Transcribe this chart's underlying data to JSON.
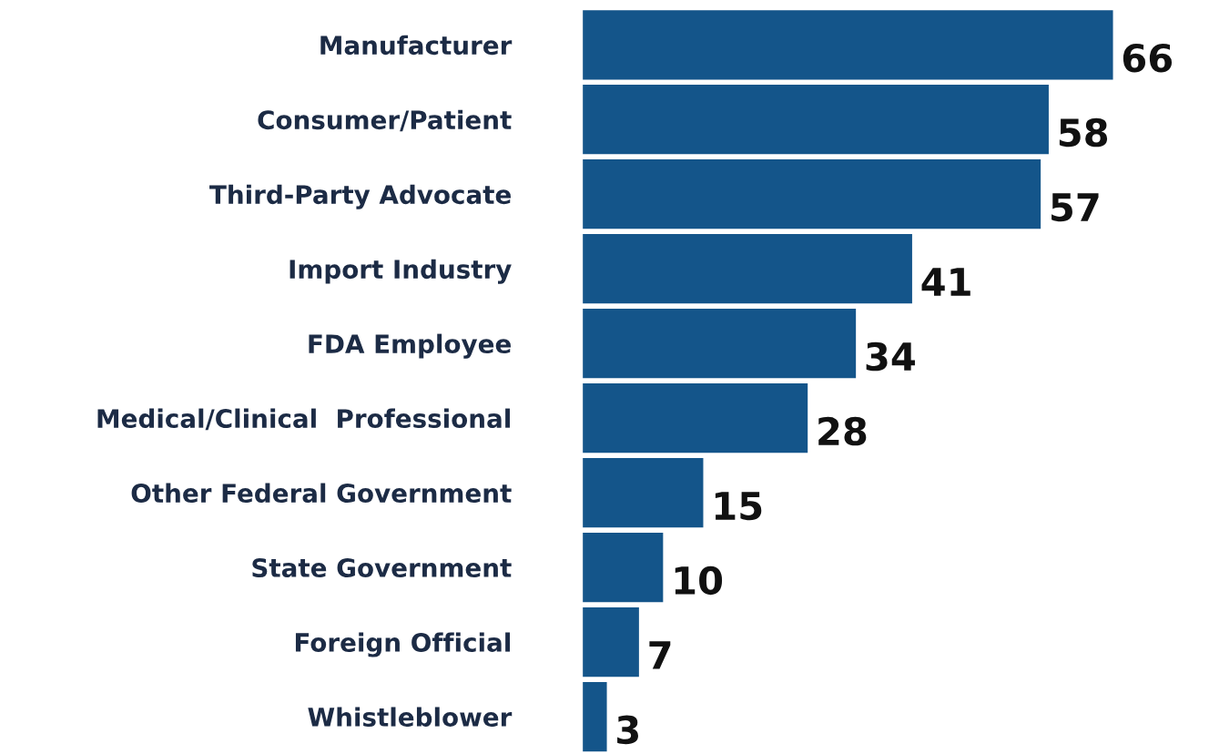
{
  "chart_data": {
    "type": "bar",
    "orientation": "horizontal",
    "categories": [
      "Manufacturer",
      "Consumer/Patient",
      "Third-Party Advocate",
      "Import Industry",
      "FDA Employee",
      "Medical/Clinical  Professional",
      "Other Federal Government",
      "State Government",
      "Foreign Official",
      "Whistleblower"
    ],
    "values": [
      66,
      58,
      57,
      41,
      34,
      28,
      15,
      10,
      7,
      3
    ],
    "color": "#14558a",
    "data_labels": true
  }
}
